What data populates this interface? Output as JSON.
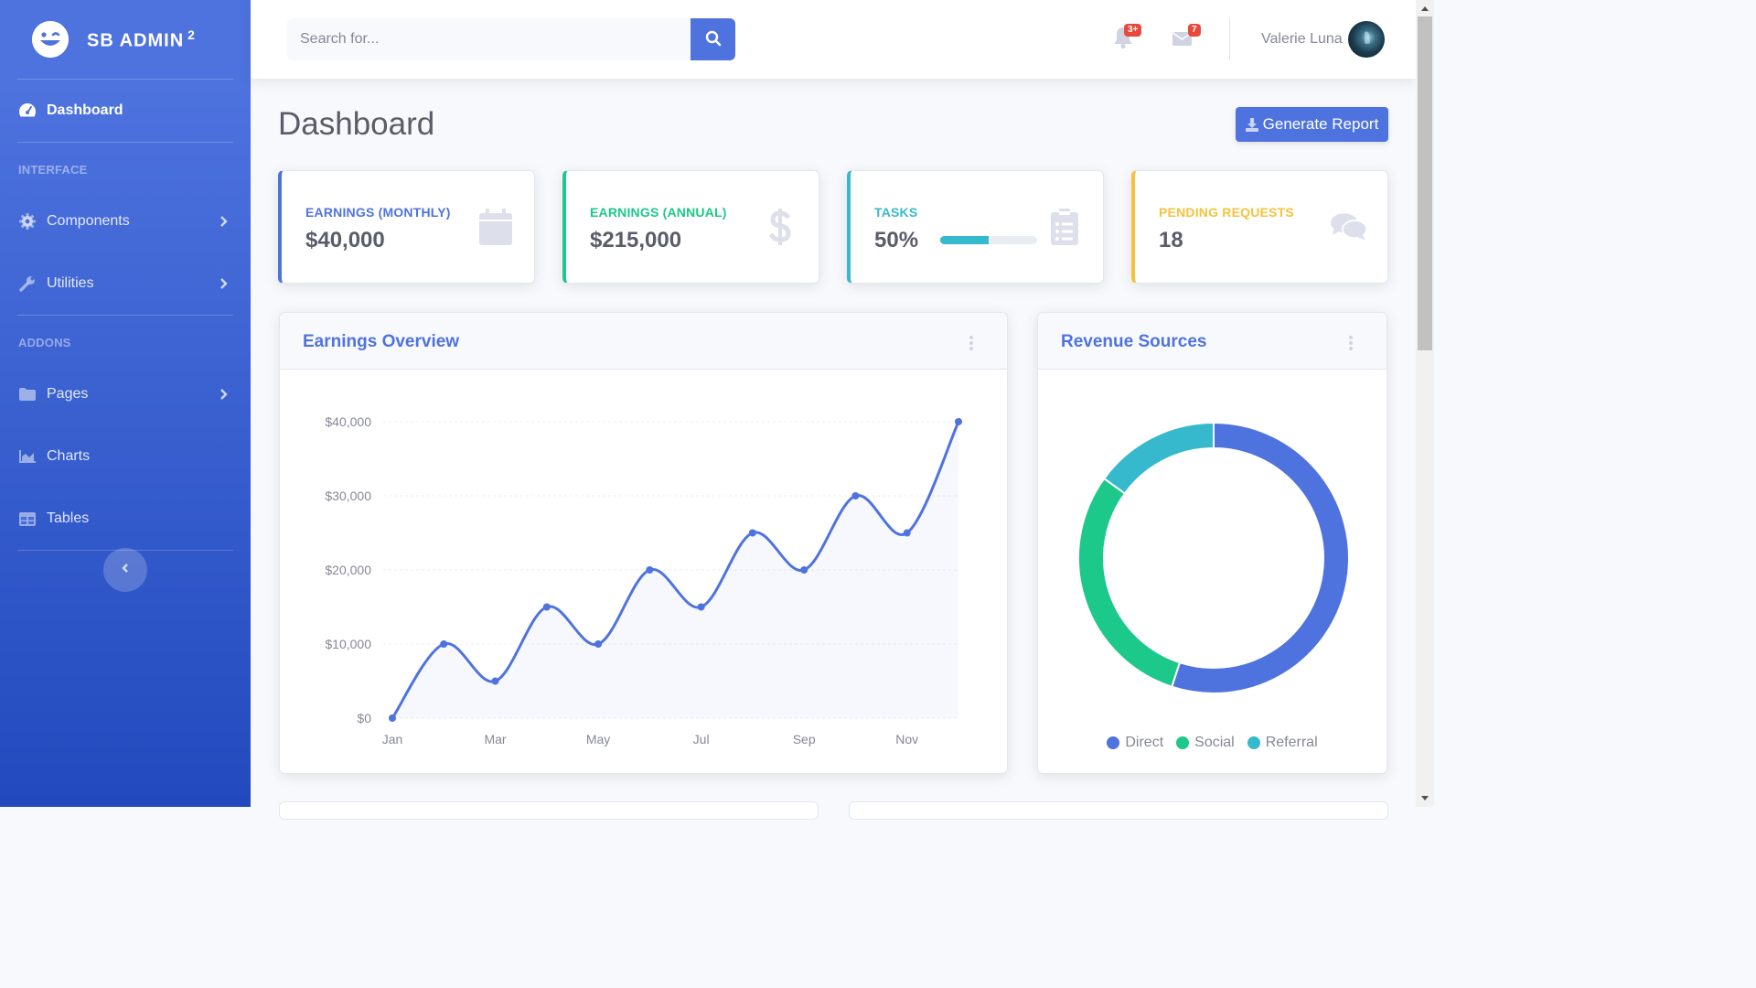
{
  "brand": {
    "name": "SB ADMIN",
    "sup": "2"
  },
  "sidebar": {
    "dashboard": "Dashboard",
    "heading_interface": "INTERFACE",
    "components": "Components",
    "utilities": "Utilities",
    "heading_addons": "ADDONS",
    "pages": "Pages",
    "charts": "Charts",
    "tables": "Tables"
  },
  "topbar": {
    "search_placeholder": "Search for...",
    "alerts_badge": "3+",
    "messages_badge": "7",
    "user_name": "Valerie Luna"
  },
  "page": {
    "title": "Dashboard",
    "generate_report": "Generate Report"
  },
  "stats": {
    "monthly": {
      "title": "Earnings (Monthly)",
      "value": "$40,000",
      "color": "#4e73df"
    },
    "annual": {
      "title": "Earnings (Annual)",
      "value": "$215,000",
      "color": "#1cc88a"
    },
    "tasks": {
      "title": "Tasks",
      "value": "50%",
      "progress": 50,
      "color": "#36b9cc"
    },
    "pending": {
      "title": "Pending Requests",
      "value": "18",
      "color": "#f6c23e"
    }
  },
  "earnings": {
    "title": "Earnings Overview"
  },
  "revenue": {
    "title": "Revenue Sources"
  },
  "chart_data": [
    {
      "type": "line",
      "x": [
        "Jan",
        "Feb",
        "Mar",
        "Apr",
        "May",
        "Jun",
        "Jul",
        "Aug",
        "Sep",
        "Oct",
        "Nov",
        "Dec"
      ],
      "x_tick_labels": [
        "Jan",
        "Mar",
        "May",
        "Jul",
        "Sep",
        "Nov"
      ],
      "series": [
        {
          "values": [
            0,
            10000,
            5000,
            15000,
            10000,
            20000,
            15000,
            25000,
            20000,
            30000,
            25000,
            40000
          ],
          "color": "#4e73df"
        }
      ],
      "y_tick_labels": [
        "$0",
        "$10,000",
        "$20,000",
        "$30,000",
        "$40,000"
      ],
      "ylim": [
        0,
        40000
      ],
      "grid": true
    },
    {
      "type": "pie",
      "donut": true,
      "labels": [
        "Direct",
        "Social",
        "Referral"
      ],
      "values": [
        55,
        30,
        15
      ],
      "colors": [
        "#4e73df",
        "#1cc88a",
        "#36b9cc"
      ],
      "legend": "bottom"
    }
  ]
}
